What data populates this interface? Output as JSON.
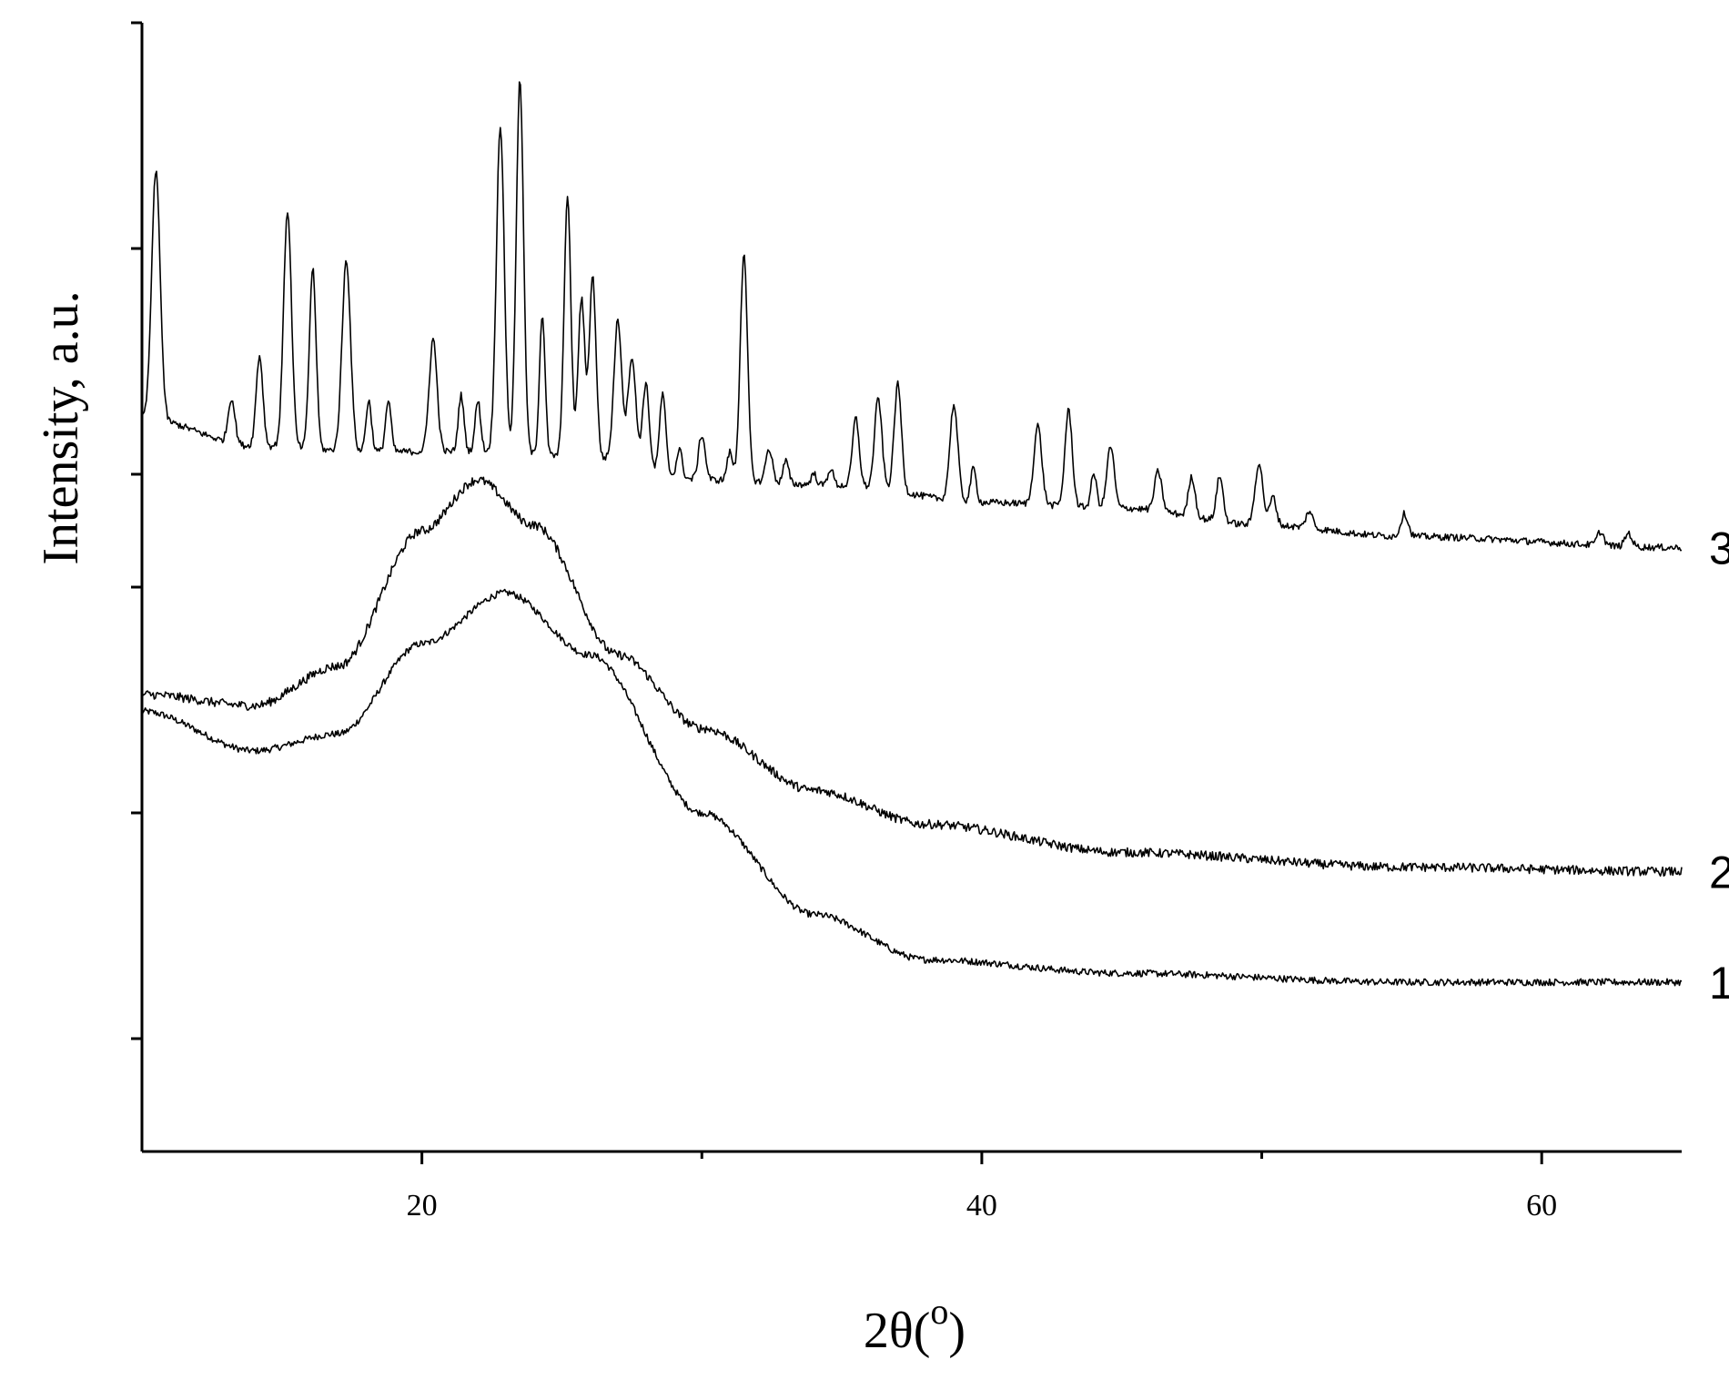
{
  "chart_data": {
    "type": "line",
    "title": "",
    "xlabel_main": "2θ(",
    "xlabel_sup": "o",
    "xlabel_close": ")",
    "ylabel": "Intensity, a.u.",
    "xlim": [
      10,
      65
    ],
    "ylim": [
      0,
      10
    ],
    "x_ticks": [
      20,
      40,
      60
    ],
    "x_ticks_minor": [
      30,
      50
    ],
    "y_ticks": [
      1,
      3,
      5,
      6,
      8,
      10
    ],
    "grid": false,
    "legend": "none",
    "series": [
      {
        "name": "1",
        "kind": "amorphous",
        "baseline": [
          [
            10,
            3.9
          ],
          [
            14,
            3.55
          ],
          [
            17,
            3.7
          ],
          [
            20,
            4.5
          ],
          [
            23,
            4.95
          ],
          [
            26,
            4.4
          ],
          [
            30,
            3.0
          ],
          [
            34,
            2.1
          ],
          [
            38,
            1.7
          ],
          [
            45,
            1.58
          ],
          [
            55,
            1.5
          ],
          [
            65,
            1.5
          ]
        ],
        "noise": 0.03
      },
      {
        "name": "2",
        "kind": "amorphous",
        "baseline": [
          [
            10,
            4.05
          ],
          [
            14,
            3.95
          ],
          [
            17,
            4.3
          ],
          [
            20,
            5.5
          ],
          [
            22,
            5.95
          ],
          [
            24,
            5.55
          ],
          [
            27,
            4.4
          ],
          [
            30,
            3.75
          ],
          [
            34,
            3.2
          ],
          [
            38,
            2.9
          ],
          [
            45,
            2.65
          ],
          [
            55,
            2.52
          ],
          [
            65,
            2.48
          ]
        ],
        "noise": 0.04
      },
      {
        "name": "3",
        "kind": "crystalline",
        "baseline": [
          [
            10,
            6.5
          ],
          [
            14,
            6.25
          ],
          [
            18,
            6.2
          ],
          [
            22,
            6.2
          ],
          [
            26,
            6.15
          ],
          [
            30,
            5.95
          ],
          [
            35,
            5.9
          ],
          [
            40,
            5.75
          ],
          [
            45,
            5.7
          ],
          [
            50,
            5.55
          ],
          [
            55,
            5.45
          ],
          [
            65,
            5.35
          ]
        ],
        "peaks": [
          [
            10.5,
            2.2,
            0.15
          ],
          [
            13.2,
            0.4,
            0.12
          ],
          [
            14.2,
            0.8,
            0.12
          ],
          [
            15.2,
            2.1,
            0.14
          ],
          [
            16.1,
            1.6,
            0.12
          ],
          [
            17.3,
            1.7,
            0.15
          ],
          [
            18.1,
            0.45,
            0.1
          ],
          [
            18.8,
            0.45,
            0.1
          ],
          [
            20.4,
            1.0,
            0.14
          ],
          [
            21.4,
            0.5,
            0.1
          ],
          [
            22.0,
            0.45,
            0.1
          ],
          [
            22.8,
            2.9,
            0.14
          ],
          [
            23.5,
            3.3,
            0.13
          ],
          [
            24.3,
            1.25,
            0.1
          ],
          [
            25.2,
            2.3,
            0.12
          ],
          [
            25.7,
            1.4,
            0.12
          ],
          [
            26.1,
            1.6,
            0.12
          ],
          [
            27.0,
            1.25,
            0.14
          ],
          [
            27.5,
            0.95,
            0.14
          ],
          [
            28.0,
            0.75,
            0.12
          ],
          [
            28.6,
            0.7,
            0.11
          ],
          [
            29.2,
            0.25,
            0.1
          ],
          [
            30.0,
            0.4,
            0.12
          ],
          [
            31.0,
            0.25,
            0.1
          ],
          [
            31.5,
            2.0,
            0.13
          ],
          [
            32.4,
            0.3,
            0.12
          ],
          [
            33.0,
            0.2,
            0.1
          ],
          [
            34.0,
            0.1,
            0.1
          ],
          [
            34.6,
            0.15,
            0.1
          ],
          [
            35.5,
            0.6,
            0.12
          ],
          [
            36.3,
            0.8,
            0.13
          ],
          [
            37.0,
            0.95,
            0.13
          ],
          [
            39.0,
            0.85,
            0.14
          ],
          [
            39.7,
            0.3,
            0.1
          ],
          [
            42.0,
            0.7,
            0.14
          ],
          [
            43.1,
            0.85,
            0.13
          ],
          [
            44.0,
            0.3,
            0.1
          ],
          [
            44.6,
            0.55,
            0.13
          ],
          [
            46.3,
            0.35,
            0.13
          ],
          [
            47.5,
            0.35,
            0.12
          ],
          [
            48.5,
            0.4,
            0.12
          ],
          [
            49.9,
            0.55,
            0.14
          ],
          [
            50.4,
            0.25,
            0.12
          ],
          [
            51.7,
            0.15,
            0.12
          ],
          [
            55.1,
            0.2,
            0.13
          ],
          [
            62.1,
            0.12,
            0.12
          ],
          [
            63.1,
            0.12,
            0.12
          ]
        ],
        "noise": 0.03
      }
    ]
  }
}
